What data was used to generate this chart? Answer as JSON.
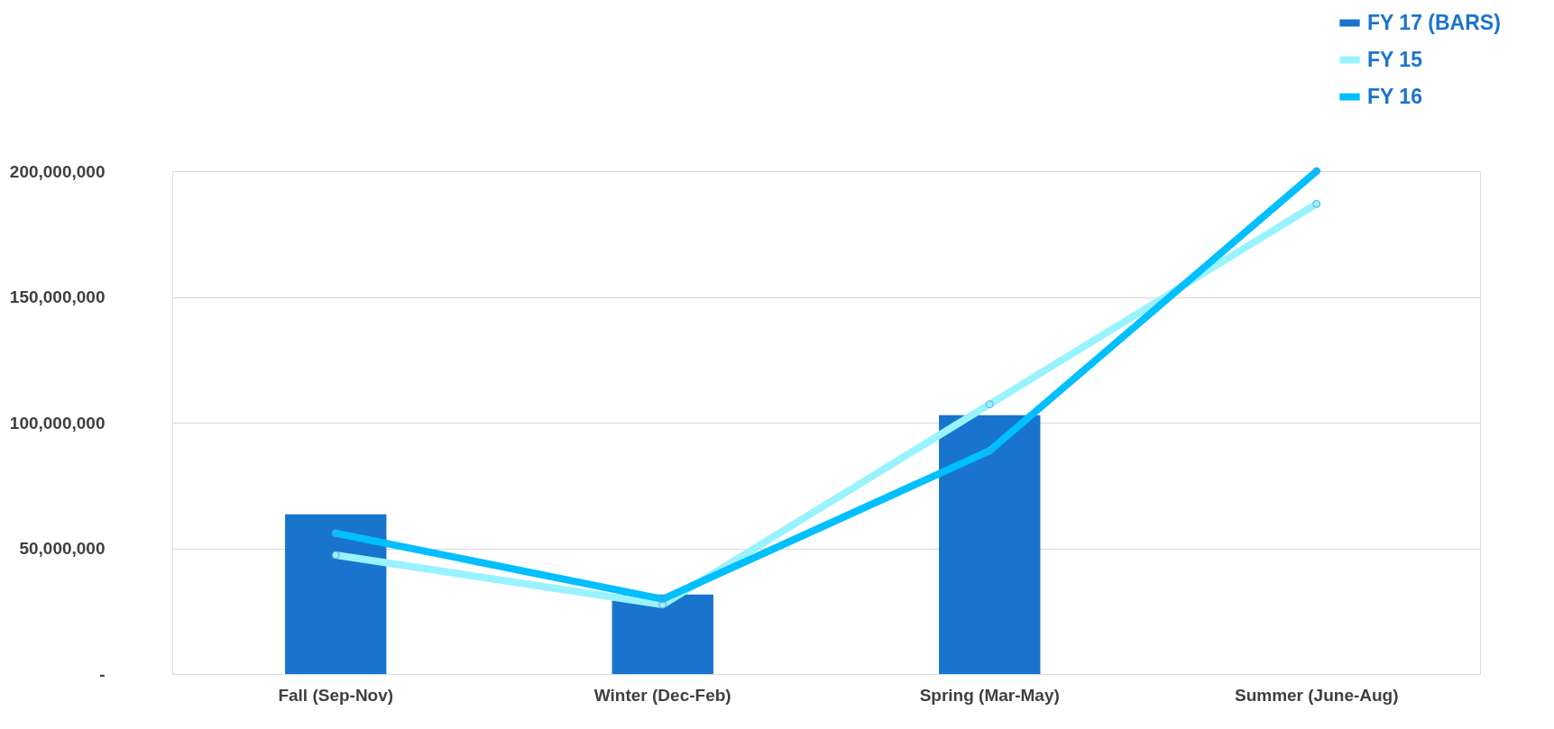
{
  "chart_data": {
    "type": "line",
    "categories": [
      "Fall (Sep-Nov)",
      "Winter (Dec-Feb)",
      "Spring (Mar-May)",
      "Summer (June-Aug)"
    ],
    "series": [
      {
        "name": "FY 17 (BARS)",
        "type": "bar",
        "color": "#1874cd",
        "values": [
          63500000,
          31600000,
          103000000,
          null
        ]
      },
      {
        "name": "FY 15",
        "color": "#99f3ff",
        "values": [
          47300000,
          27600000,
          107300000,
          187000000
        ]
      },
      {
        "name": "FY 16",
        "color": "#00bfff",
        "values": [
          56000000,
          29800000,
          88800000,
          200000000
        ]
      }
    ],
    "ylim": [
      0,
      200000000
    ],
    "yticks": [
      {
        "value": 0,
        "label": "-"
      },
      {
        "value": 50000000,
        "label": "50,000,000"
      },
      {
        "value": 100000000,
        "label": "100,000,000"
      },
      {
        "value": 150000000,
        "label": "150,000,000"
      },
      {
        "value": 200000000,
        "label": "200,000,000"
      }
    ],
    "grid": "y",
    "legend": "top right",
    "marker": "circle",
    "line_style": "solid"
  }
}
